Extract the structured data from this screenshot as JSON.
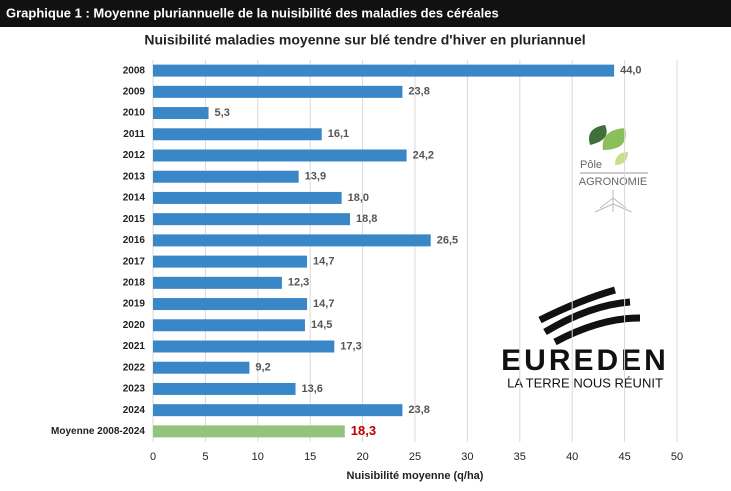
{
  "header": {
    "title": "Graphique 1 :  Moyenne pluriannuelle de la nuisibilité des maladies des céréales"
  },
  "chart_data": {
    "type": "bar",
    "orientation": "horizontal",
    "title": "Nuisibilité maladies moyenne sur blé tendre d'hiver en pluriannuel",
    "x_label": "Nuisibilité moyenne (q/ha)",
    "categories": [
      "2008",
      "2009",
      "2010",
      "2011",
      "2012",
      "2013",
      "2014",
      "2015",
      "2016",
      "2017",
      "2018",
      "2019",
      "2020",
      "2021",
      "2022",
      "2023",
      "2024",
      "Moyenne 2008-2024"
    ],
    "values": [
      44.0,
      23.8,
      5.3,
      16.1,
      24.2,
      13.9,
      18.0,
      18.8,
      26.5,
      14.7,
      12.3,
      14.7,
      14.5,
      17.3,
      9.2,
      13.6,
      23.8,
      18.3
    ],
    "value_labels": [
      "44,0",
      "23,8",
      "5,3",
      "16,1",
      "24,2",
      "13,9",
      "18,0",
      "18,8",
      "26,5",
      "14,7",
      "12,3",
      "14,7",
      "14,5",
      "17,3",
      "9,2",
      "13,6",
      "23,8",
      "18,3"
    ],
    "colors": [
      "#3a87c8",
      "#3a87c8",
      "#3a87c8",
      "#3a87c8",
      "#3a87c8",
      "#3a87c8",
      "#3a87c8",
      "#3a87c8",
      "#3a87c8",
      "#3a87c8",
      "#3a87c8",
      "#3a87c8",
      "#3a87c8",
      "#3a87c8",
      "#3a87c8",
      "#3a87c8",
      "#3a87c8",
      "#93c47d"
    ],
    "xlim": [
      0,
      50
    ],
    "xticks": [
      0,
      5,
      10,
      15,
      20,
      25,
      30,
      35,
      40,
      45,
      50
    ],
    "grid": true
  },
  "logos": {
    "pole": "Pôle",
    "agronomie": "AGRONOMIE",
    "brand": "EUREDEN",
    "tagline": "LA TERRE NOUS RÉUNIT"
  }
}
